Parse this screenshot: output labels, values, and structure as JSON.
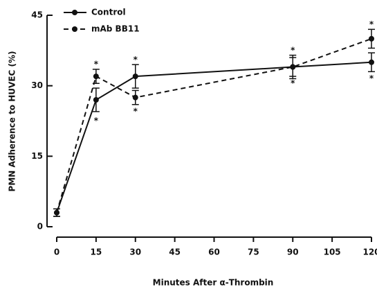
{
  "chart_data": {
    "type": "line",
    "xlabel": "Minutes After α-Thrombin",
    "ylabel": "PMN Adherence to HUVEC (%)",
    "x": [
      0,
      15,
      30,
      90,
      120
    ],
    "series": [
      {
        "name": "Control",
        "color": "#111111",
        "dashed": false,
        "values": [
          3,
          27,
          32,
          34,
          35
        ],
        "errors": [
          0.8,
          2.5,
          2.5,
          2.5,
          2
        ]
      },
      {
        "name": "mAb BB11",
        "color": "#111111",
        "dashed": true,
        "values": [
          3,
          32,
          27.5,
          34,
          40
        ],
        "errors": [
          0.8,
          1.5,
          1.5,
          2,
          2
        ]
      }
    ],
    "annotations": [
      {
        "text": "*",
        "x": 15,
        "y": 34.5
      },
      {
        "text": "*",
        "x": 15,
        "y": 22.5
      },
      {
        "text": "*",
        "x": 30,
        "y": 35.5
      },
      {
        "text": "*",
        "x": 30,
        "y": 24.5
      },
      {
        "text": "*",
        "x": 90,
        "y": 37.5
      },
      {
        "text": "*",
        "x": 90,
        "y": 30.5
      },
      {
        "text": "*",
        "x": 120,
        "y": 43
      },
      {
        "text": "*",
        "x": 120,
        "y": 31.5
      }
    ],
    "xlim": [
      0,
      120
    ],
    "xticks": [
      0,
      15,
      30,
      45,
      60,
      75,
      90,
      105,
      120
    ],
    "ylim": [
      0,
      45
    ],
    "yticks": [
      0,
      15,
      30,
      45
    ],
    "legend": "top-left"
  }
}
